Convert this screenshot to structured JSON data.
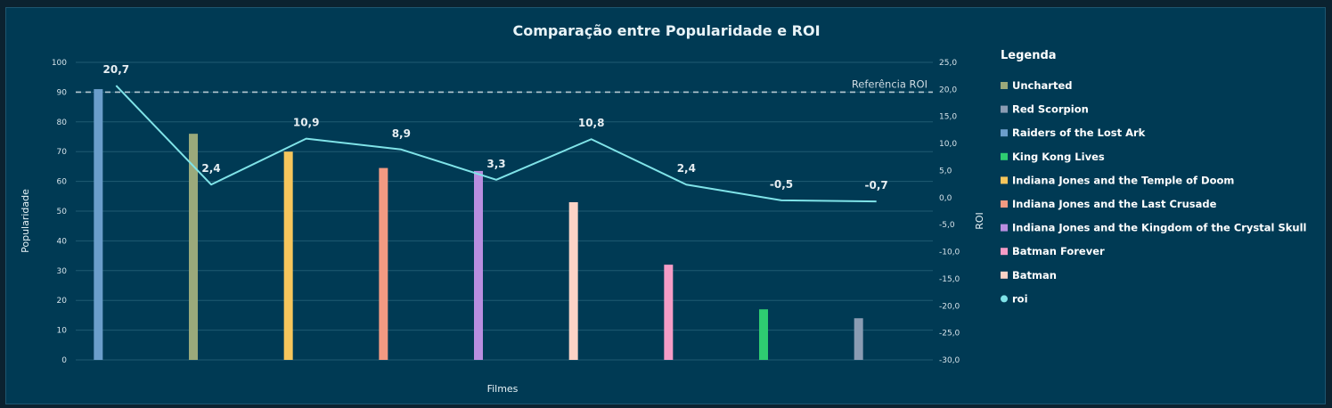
{
  "chart_data": {
    "type": "bar",
    "title": "Comparação entre Popularidade e ROI",
    "xlabel": "Filmes",
    "ylabel": "Popularidade",
    "y2label": "ROI",
    "ylim": [
      0,
      100
    ],
    "y2lim": [
      -30,
      25
    ],
    "yticks": [
      "0",
      "10",
      "20",
      "30",
      "40",
      "50",
      "60",
      "70",
      "80",
      "90",
      "100"
    ],
    "y2ticks": [
      "-30,0",
      "-25,0",
      "-20,0",
      "-15,0",
      "-10,0",
      "-5,0",
      "0,0",
      "5,0",
      "10,0",
      "15,0",
      "20,0",
      "25,0"
    ],
    "grid": true,
    "legend_title": "Legenda",
    "legend_position": "right",
    "reference_line": {
      "label": "Referência ROI",
      "popularity": 90,
      "color": "#b8cad3"
    },
    "legend": [
      {
        "name": "Uncharted",
        "color": "#9aa97b"
      },
      {
        "name": "Red Scorpion",
        "color": "#8a9cb3"
      },
      {
        "name": "Raiders of the Lost Ark",
        "color": "#6b9ecb"
      },
      {
        "name": "King Kong Lives",
        "color": "#2ecc71"
      },
      {
        "name": "Indiana Jones and the Temple of Doom",
        "color": "#f6c65c"
      },
      {
        "name": "Indiana Jones and the Last Crusade",
        "color": "#f39a82"
      },
      {
        "name": "Indiana Jones and the Kingdom of the Crystal Skull",
        "color": "#b98ee0"
      },
      {
        "name": "Batman Forever",
        "color": "#f59cc6"
      },
      {
        "name": "Batman",
        "color": "#fcd3c6"
      },
      {
        "name": "roi",
        "color": "#7fe3e8",
        "marker": "dot"
      }
    ],
    "bars": [
      {
        "name": "Raiders of the Lost Ark",
        "popularity": 91,
        "color": "#6b9ecb"
      },
      {
        "name": "Uncharted",
        "popularity": 76,
        "color": "#9aa97b"
      },
      {
        "name": "Indiana Jones and the Temple of Doom",
        "popularity": 70,
        "color": "#f6c65c"
      },
      {
        "name": "Indiana Jones and the Last Crusade",
        "popularity": 64.5,
        "color": "#f39a82"
      },
      {
        "name": "Indiana Jones and the Kingdom of the Crystal Skull",
        "popularity": 63.5,
        "color": "#b98ee0"
      },
      {
        "name": "Batman",
        "popularity": 53,
        "color": "#fcd3c6"
      },
      {
        "name": "Batman Forever",
        "popularity": 32,
        "color": "#f59cc6"
      },
      {
        "name": "King Kong Lives",
        "popularity": 17,
        "color": "#2ecc71"
      },
      {
        "name": "Red Scorpion",
        "popularity": 14,
        "color": "#8a9cb3"
      }
    ],
    "roi_series": {
      "name": "roi",
      "color": "#7fe3e8",
      "values": [
        20.7,
        2.4,
        10.9,
        8.9,
        3.3,
        10.8,
        2.4,
        -0.5,
        -0.7
      ],
      "labels": [
        "20,7",
        "2,4",
        "10,9",
        "8,9",
        "3,3",
        "10,8",
        "2,4",
        "-0,5",
        "-0,7"
      ]
    }
  }
}
